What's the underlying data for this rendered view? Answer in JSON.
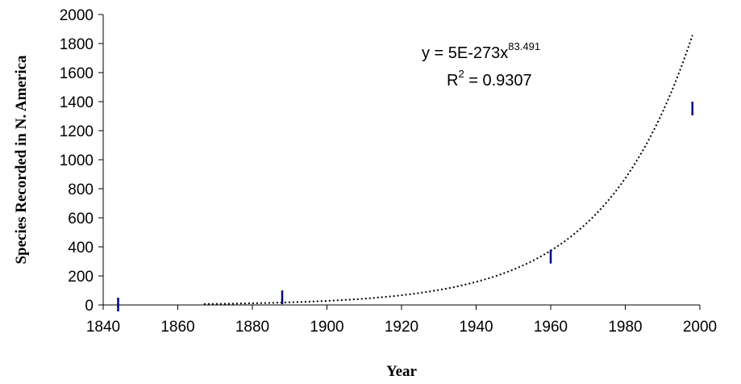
{
  "chart_data": {
    "type": "scatter",
    "title": "",
    "xlabel": "Year",
    "ylabel": "Species Recorded in N. America",
    "xlim": [
      1840,
      2000
    ],
    "ylim": [
      0,
      2000
    ],
    "x_ticks": [
      "1840",
      "1860",
      "1880",
      "1900",
      "1920",
      "1940",
      "1960",
      "1980",
      "2000"
    ],
    "y_ticks": [
      "0",
      "200",
      "400",
      "600",
      "800",
      "1000",
      "1200",
      "1400",
      "1600",
      "1800",
      "2000"
    ],
    "grid": false,
    "series": [
      {
        "marker": "vertical-dash",
        "color": "#000080",
        "points": [
          {
            "x": 1844,
            "y": 0
          },
          {
            "x": 1888,
            "y": 50
          },
          {
            "x": 1960,
            "y": 330
          },
          {
            "x": 1998,
            "y": 1350
          }
        ]
      }
    ],
    "trendline": {
      "type": "power",
      "style": "dotted",
      "color": "#000000",
      "x_range": [
        1867,
        1998
      ],
      "equation_main": "y = 5E-273x",
      "equation_exponent": "83.491",
      "r2_prefix": "R",
      "r2_sup": "2",
      "r2_value": " = 0.9307"
    }
  }
}
